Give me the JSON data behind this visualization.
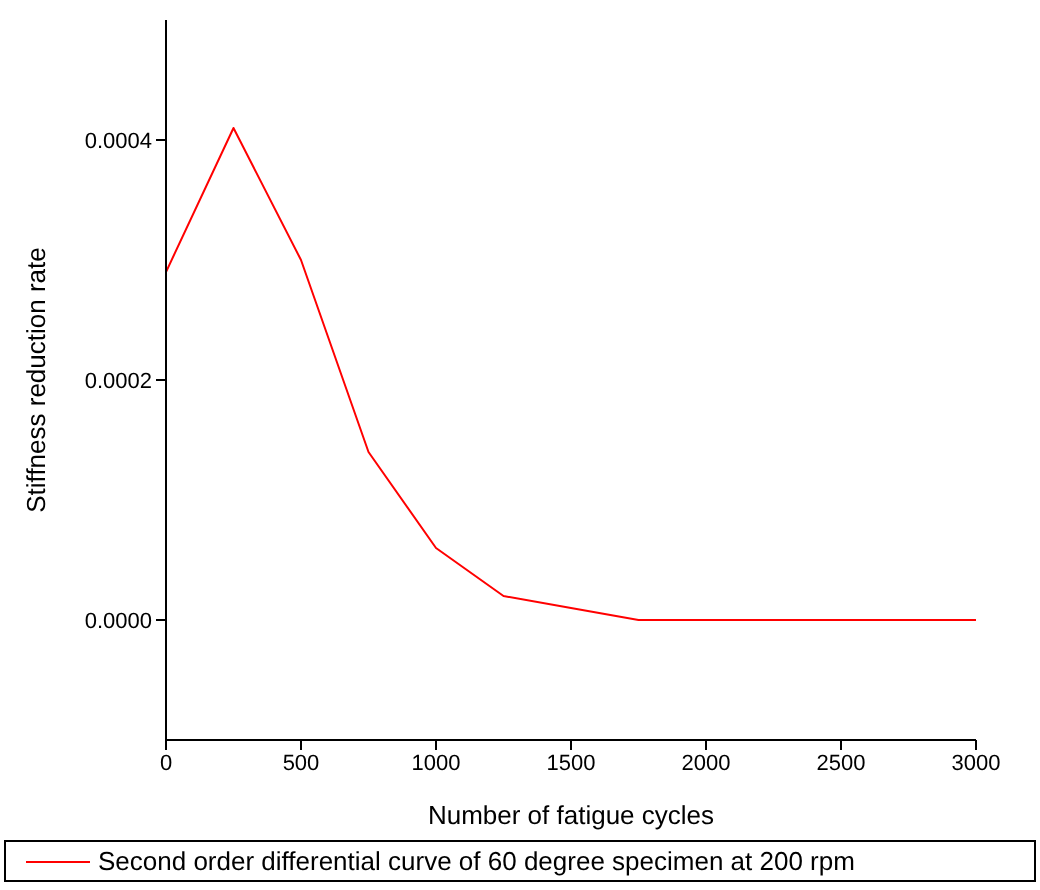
{
  "chart_data": {
    "type": "line",
    "xlabel": "Number of fatigue cycles",
    "ylabel": "Stiffness reduction rate",
    "x": [
      0,
      250,
      500,
      750,
      1000,
      1250,
      1500,
      1750,
      2000,
      2250,
      2500,
      2750,
      3000
    ],
    "series": [
      {
        "name": "Second order differential curve of 60 degree specimen at 200 rpm",
        "color": "#ff0000",
        "values": [
          0.00029,
          0.00041,
          0.0003,
          0.00014,
          6e-05,
          2e-05,
          1e-05,
          0,
          0,
          0,
          0,
          0,
          0
        ]
      }
    ],
    "xlim": [
      0,
      3000
    ],
    "xticks": [
      0,
      500,
      1000,
      1500,
      2000,
      2500,
      3000
    ],
    "ylim": [
      -0.0001,
      0.0005
    ],
    "yticks": [
      {
        "value": 0,
        "label": "0.0000"
      },
      {
        "value": 0.0002,
        "label": "0.0002"
      },
      {
        "value": 0.0004,
        "label": "0.0004"
      }
    ],
    "grid": false,
    "legend": "bottom",
    "marker": "none",
    "line_style": "solid"
  }
}
